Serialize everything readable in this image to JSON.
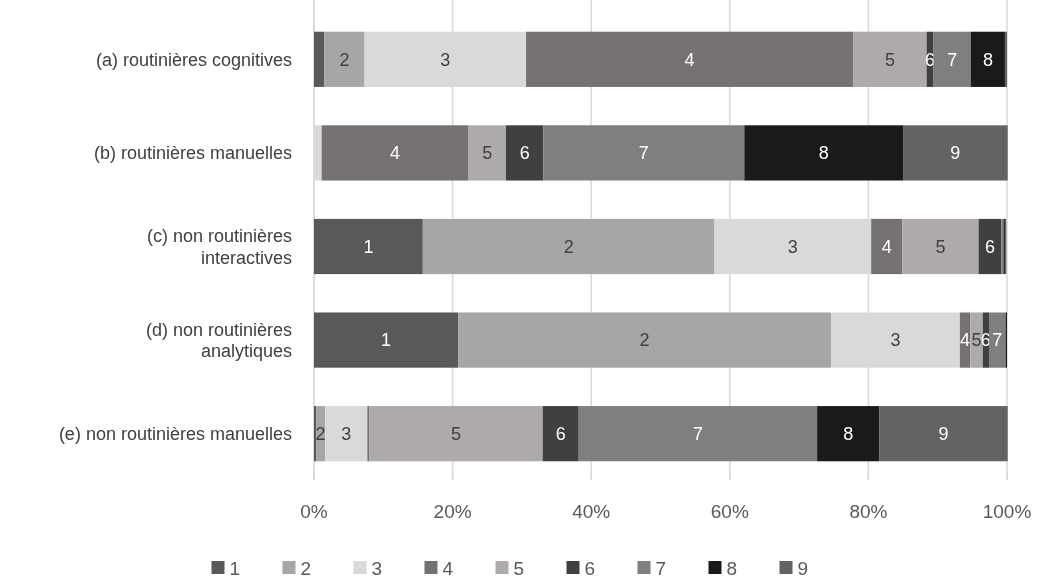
{
  "chart_data": {
    "type": "bar",
    "orientation": "horizontal",
    "stacked": true,
    "categories": [
      "(a) routinières cognitives",
      "(b) routinières manuelles",
      "(c) non routinières\ninteractives",
      "(d) non routinières\nanalytiques",
      "(e) non routinières manuelles"
    ],
    "series": [
      {
        "name": "1",
        "color": "#595959",
        "values": [
          1.5,
          0,
          15.7,
          20.8,
          0.3
        ]
      },
      {
        "name": "2",
        "color": "#a6a6a6",
        "values": [
          5.8,
          0,
          42.1,
          53.8,
          1.3
        ]
      },
      {
        "name": "3",
        "color": "#d9d9d9",
        "values": [
          23.3,
          1.1,
          22.6,
          18.6,
          6.1
        ]
      },
      {
        "name": "4",
        "color": "#767171",
        "values": [
          47.2,
          21.2,
          4.5,
          1.5,
          0.3
        ]
      },
      {
        "name": "5",
        "color": "#aeaaaa",
        "values": [
          10.6,
          5.4,
          11.0,
          1.8,
          25.0
        ]
      },
      {
        "name": "6",
        "color": "#404040",
        "values": [
          1.0,
          5.4,
          3.3,
          0.9,
          5.2
        ]
      },
      {
        "name": "7",
        "color": "#7f7f7f",
        "values": [
          5.4,
          29.0,
          0.3,
          2.4,
          34.4
        ]
      },
      {
        "name": "8",
        "color": "#1a1a1a",
        "values": [
          4.9,
          22.9,
          0.2,
          0.2,
          9.0
        ]
      },
      {
        "name": "9",
        "color": "#636363",
        "values": [
          0.3,
          15.1,
          0.2,
          0,
          18.5
        ]
      }
    ],
    "xlim": [
      0,
      100
    ],
    "xticks": [
      {
        "value": 0,
        "label": "0%"
      },
      {
        "value": 20,
        "label": "20%"
      },
      {
        "value": 40,
        "label": "40%"
      },
      {
        "value": 60,
        "label": "60%"
      },
      {
        "value": 80,
        "label": "80%"
      },
      {
        "value": 100,
        "label": "100%"
      }
    ],
    "grid": "x",
    "legend": "bottom"
  }
}
